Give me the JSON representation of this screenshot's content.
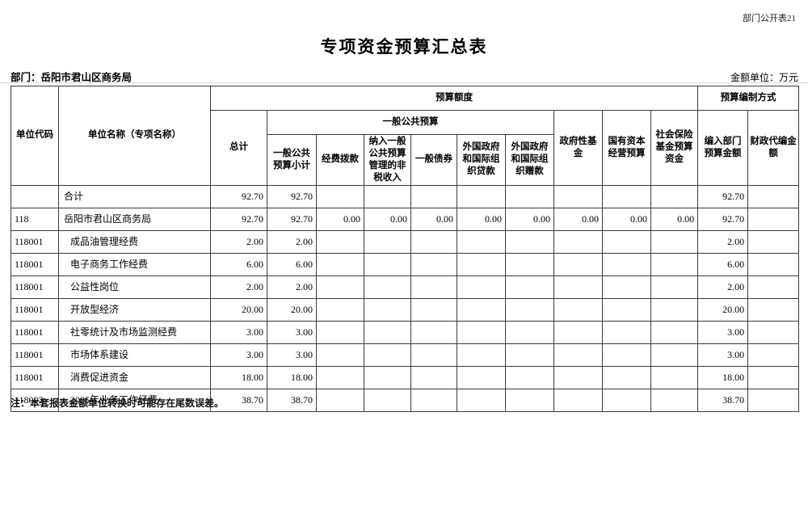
{
  "page": {
    "corner_label": "部门公开表21",
    "title": "专项资金预算汇总表",
    "department_label": "部门：岳阳市君山区商务局",
    "unit_label": "金额单位：万元",
    "note": "注：本套报表金额单位转换时可能存在尾数误差。"
  },
  "table": {
    "header": {
      "unit_code": "单位代码",
      "unit_name": "单位名称（专项名称）",
      "budget_amount_group": "预算额度",
      "budget_method_group": "预算编制方式",
      "total": "总计",
      "general_public_group": "一般公共预算",
      "general_public_subtotal": "一般公共预算小计",
      "fiscal_appropriation": "经费拨款",
      "nontax_income": "纳入一般公共预算管理的非税收入",
      "general_bonds": "一般债券",
      "foreign_loans": "外国政府和国际组织贷款",
      "foreign_grants": "外国政府和国际组织赠款",
      "government_fund": "政府性基金",
      "state_capital": "国有资本经营预算",
      "social_insurance": "社会保险基金预算资金",
      "dept_budget_amount": "编入部门预算金额",
      "fiscal_proxy_amount": "财政代编金额"
    },
    "rows": [
      {
        "code": "",
        "name": "合计",
        "indent": false,
        "values": [
          "92.70",
          "92.70",
          "",
          "",
          "",
          "",
          "",
          "",
          "",
          "",
          "92.70",
          ""
        ]
      },
      {
        "code": "118",
        "name": "岳阳市君山区商务局",
        "indent": false,
        "values": [
          "92.70",
          "92.70",
          "0.00",
          "0.00",
          "0.00",
          "0.00",
          "0.00",
          "0.00",
          "0.00",
          "0.00",
          "92.70",
          ""
        ]
      },
      {
        "code": "118001",
        "name": "成品油管理经费",
        "indent": true,
        "values": [
          "2.00",
          "2.00",
          "",
          "",
          "",
          "",
          "",
          "",
          "",
          "",
          "2.00",
          ""
        ]
      },
      {
        "code": "118001",
        "name": "电子商务工作经费",
        "indent": true,
        "values": [
          "6.00",
          "6.00",
          "",
          "",
          "",
          "",
          "",
          "",
          "",
          "",
          "6.00",
          ""
        ]
      },
      {
        "code": "118001",
        "name": "公益性岗位",
        "indent": true,
        "values": [
          "2.00",
          "2.00",
          "",
          "",
          "",
          "",
          "",
          "",
          "",
          "",
          "2.00",
          ""
        ]
      },
      {
        "code": "118001",
        "name": "开放型经济",
        "indent": true,
        "values": [
          "20.00",
          "20.00",
          "",
          "",
          "",
          "",
          "",
          "",
          "",
          "",
          "20.00",
          ""
        ]
      },
      {
        "code": "118001",
        "name": "社零统计及市场监测经费",
        "indent": true,
        "values": [
          "3.00",
          "3.00",
          "",
          "",
          "",
          "",
          "",
          "",
          "",
          "",
          "3.00",
          ""
        ]
      },
      {
        "code": "118001",
        "name": "市场体系建设",
        "indent": true,
        "values": [
          "3.00",
          "3.00",
          "",
          "",
          "",
          "",
          "",
          "",
          "",
          "",
          "3.00",
          ""
        ]
      },
      {
        "code": "118001",
        "name": "消费促进资金",
        "indent": true,
        "values": [
          "18.00",
          "18.00",
          "",
          "",
          "",
          "",
          "",
          "",
          "",
          "",
          "18.00",
          ""
        ]
      },
      {
        "code": "118002",
        "name": "2025年业务工作经费",
        "indent": true,
        "values": [
          "38.70",
          "38.70",
          "",
          "",
          "",
          "",
          "",
          "",
          "",
          "",
          "38.70",
          ""
        ]
      }
    ]
  }
}
